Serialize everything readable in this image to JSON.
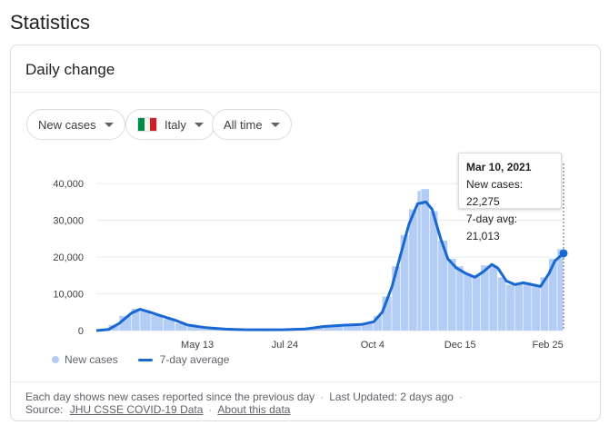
{
  "page": {
    "title": "Statistics"
  },
  "card": {
    "title": "Daily change"
  },
  "filters": {
    "metric": "New cases",
    "country": "Italy",
    "range": "All time"
  },
  "colors": {
    "bars": "#b3cdf5",
    "line": "#1967d2",
    "flag": [
      "#008c45",
      "#f4f5f0",
      "#cd212a"
    ]
  },
  "legend": {
    "bars": "New cases",
    "line": "7-day average"
  },
  "tooltip": {
    "date": "Mar 10, 2021",
    "new_cases": "New cases: 22,275",
    "avg": "7-day avg: 21,013"
  },
  "footer": {
    "note": "Each day shows new cases reported since the previous day",
    "updated": "Last Updated: 2 days ago",
    "source_label": "Source:",
    "source_link": "JHU CSSE COVID-19 Data",
    "about_link": "About this data"
  },
  "chart_data": {
    "type": "bar",
    "title": "",
    "xlabel": "",
    "ylabel": "",
    "ylim": [
      0,
      43000
    ],
    "y_ticks": [
      0,
      10000,
      20000,
      30000,
      40000
    ],
    "y_tick_labels": [
      "0",
      "10,000",
      "20,000",
      "30,000",
      "40,000"
    ],
    "x_tick_labels": [
      "May 13",
      "Jul 24",
      "Oct 4",
      "Dec 15",
      "Feb 25"
    ],
    "x_tick_dates": [
      "2020-05-13",
      "2020-07-24",
      "2020-10-04",
      "2020-12-15",
      "2021-02-25"
    ],
    "x_range": [
      "2020-02-20",
      "2021-03-10"
    ],
    "grid": true,
    "legend_position": "bottom-left",
    "series": [
      {
        "name": "New cases",
        "type": "bar",
        "points": [
          [
            "2020-02-20",
            0
          ],
          [
            "2020-03-01",
            500
          ],
          [
            "2020-03-10",
            2500
          ],
          [
            "2020-03-20",
            5500
          ],
          [
            "2020-03-27",
            6300
          ],
          [
            "2020-04-05",
            4800
          ],
          [
            "2020-04-15",
            3600
          ],
          [
            "2020-04-25",
            2600
          ],
          [
            "2020-05-05",
            1400
          ],
          [
            "2020-05-20",
            700
          ],
          [
            "2020-06-05",
            350
          ],
          [
            "2020-06-20",
            250
          ],
          [
            "2020-07-05",
            200
          ],
          [
            "2020-07-24",
            280
          ],
          [
            "2020-08-10",
            500
          ],
          [
            "2020-08-25",
            1200
          ],
          [
            "2020-09-10",
            1500
          ],
          [
            "2020-09-25",
            1700
          ],
          [
            "2020-10-05",
            2500
          ],
          [
            "2020-10-12",
            5500
          ],
          [
            "2020-10-20",
            13000
          ],
          [
            "2020-10-27",
            22000
          ],
          [
            "2020-11-03",
            30000
          ],
          [
            "2020-11-10",
            36000
          ],
          [
            "2020-11-13",
            40000
          ],
          [
            "2020-11-20",
            37000
          ],
          [
            "2020-11-27",
            28000
          ],
          [
            "2020-12-05",
            21000
          ],
          [
            "2020-12-12",
            18000
          ],
          [
            "2020-12-18",
            17000
          ],
          [
            "2020-12-25",
            14000
          ],
          [
            "2021-01-01",
            16000
          ],
          [
            "2021-01-08",
            19500
          ],
          [
            "2021-01-15",
            16000
          ],
          [
            "2021-01-22",
            13000
          ],
          [
            "2021-01-29",
            12000
          ],
          [
            "2021-02-05",
            13500
          ],
          [
            "2021-02-12",
            12500
          ],
          [
            "2021-02-19",
            12000
          ],
          [
            "2021-02-26",
            17000
          ],
          [
            "2021-03-05",
            22000
          ],
          [
            "2021-03-10",
            22275
          ]
        ]
      },
      {
        "name": "7-day average",
        "type": "line",
        "points": [
          [
            "2020-02-20",
            0
          ],
          [
            "2020-03-01",
            300
          ],
          [
            "2020-03-10",
            2000
          ],
          [
            "2020-03-20",
            4800
          ],
          [
            "2020-03-27",
            5800
          ],
          [
            "2020-04-05",
            4900
          ],
          [
            "2020-04-15",
            3800
          ],
          [
            "2020-04-25",
            2800
          ],
          [
            "2020-05-05",
            1500
          ],
          [
            "2020-05-20",
            800
          ],
          [
            "2020-06-05",
            400
          ],
          [
            "2020-06-20",
            250
          ],
          [
            "2020-07-05",
            220
          ],
          [
            "2020-07-24",
            250
          ],
          [
            "2020-08-10",
            450
          ],
          [
            "2020-08-25",
            1100
          ],
          [
            "2020-09-10",
            1450
          ],
          [
            "2020-09-25",
            1650
          ],
          [
            "2020-10-05",
            2400
          ],
          [
            "2020-10-12",
            5000
          ],
          [
            "2020-10-20",
            12000
          ],
          [
            "2020-10-27",
            20500
          ],
          [
            "2020-11-03",
            29000
          ],
          [
            "2020-11-10",
            34500
          ],
          [
            "2020-11-17",
            35000
          ],
          [
            "2020-11-22",
            33000
          ],
          [
            "2020-11-29",
            25000
          ],
          [
            "2020-12-05",
            19500
          ],
          [
            "2020-12-12",
            17000
          ],
          [
            "2020-12-20",
            15500
          ],
          [
            "2020-12-27",
            14500
          ],
          [
            "2021-01-03",
            16000
          ],
          [
            "2021-01-10",
            18000
          ],
          [
            "2021-01-15",
            17000
          ],
          [
            "2021-01-22",
            13500
          ],
          [
            "2021-01-29",
            12500
          ],
          [
            "2021-02-05",
            13000
          ],
          [
            "2021-02-12",
            12500
          ],
          [
            "2021-02-19",
            12000
          ],
          [
            "2021-02-26",
            15500
          ],
          [
            "2021-03-03",
            19000
          ],
          [
            "2021-03-10",
            21013
          ]
        ]
      }
    ]
  }
}
